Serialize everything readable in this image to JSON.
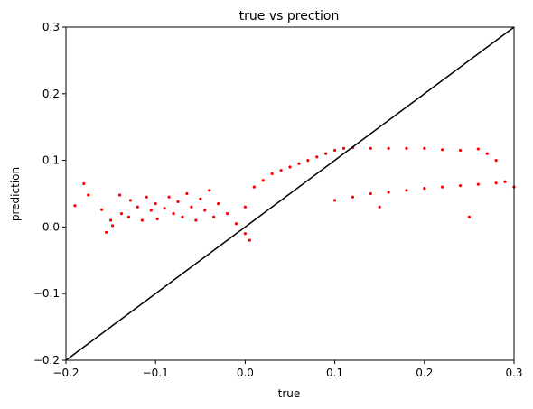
{
  "chart_data": {
    "type": "scatter",
    "title": "true vs prection",
    "xlabel": "true",
    "ylabel": "prediction",
    "xlim": [
      -0.2,
      0.3
    ],
    "ylim": [
      -0.2,
      0.3
    ],
    "grid": false,
    "xticks": [
      -0.2,
      -0.1,
      0.0,
      0.1,
      0.2,
      0.3
    ],
    "yticks": [
      -0.2,
      -0.1,
      0.0,
      0.1,
      0.2,
      0.3
    ],
    "xtick_labels": [
      "−0.2",
      "−0.1",
      "0.0",
      "0.1",
      "0.2",
      "0.3"
    ],
    "ytick_labels": [
      "−0.2",
      "−0.1",
      "0.0",
      "0.1",
      "0.2",
      "0.3"
    ],
    "point_color": "#ff0000",
    "reference_line": {
      "x": [
        -0.2,
        0.3
      ],
      "y": [
        -0.2,
        0.3
      ],
      "color": "#000000"
    },
    "series": [
      {
        "values": [
          [
            -0.19,
            0.032
          ],
          [
            -0.18,
            0.065
          ],
          [
            -0.175,
            0.048
          ],
          [
            -0.16,
            0.026
          ],
          [
            -0.155,
            -0.008
          ],
          [
            -0.15,
            0.01
          ],
          [
            -0.148,
            0.002
          ],
          [
            -0.14,
            0.048
          ],
          [
            -0.138,
            0.02
          ],
          [
            -0.13,
            0.015
          ],
          [
            -0.128,
            0.04
          ],
          [
            -0.12,
            0.03
          ],
          [
            -0.115,
            0.01
          ],
          [
            -0.11,
            0.045
          ],
          [
            -0.105,
            0.025
          ],
          [
            -0.1,
            0.035
          ],
          [
            -0.098,
            0.012
          ],
          [
            -0.09,
            0.028
          ],
          [
            -0.085,
            0.045
          ],
          [
            -0.08,
            0.02
          ],
          [
            -0.075,
            0.038
          ],
          [
            -0.07,
            0.015
          ],
          [
            -0.065,
            0.05
          ],
          [
            -0.06,
            0.03
          ],
          [
            -0.055,
            0.01
          ],
          [
            -0.05,
            0.042
          ],
          [
            -0.045,
            0.025
          ],
          [
            -0.04,
            0.055
          ],
          [
            -0.035,
            0.015
          ],
          [
            -0.03,
            0.035
          ],
          [
            -0.02,
            0.02
          ],
          [
            -0.01,
            0.005
          ],
          [
            0.0,
            -0.01
          ],
          [
            0.005,
            -0.02
          ],
          [
            0.0,
            0.03
          ],
          [
            0.01,
            0.06
          ],
          [
            0.02,
            0.07
          ],
          [
            0.03,
            0.08
          ],
          [
            0.04,
            0.085
          ],
          [
            0.05,
            0.09
          ],
          [
            0.06,
            0.095
          ],
          [
            0.07,
            0.1
          ],
          [
            0.08,
            0.105
          ],
          [
            0.09,
            0.11
          ],
          [
            0.1,
            0.115
          ],
          [
            0.11,
            0.118
          ],
          [
            0.12,
            0.119
          ],
          [
            0.14,
            0.118
          ],
          [
            0.16,
            0.118
          ],
          [
            0.18,
            0.118
          ],
          [
            0.2,
            0.118
          ],
          [
            0.22,
            0.116
          ],
          [
            0.24,
            0.115
          ],
          [
            0.26,
            0.117
          ],
          [
            0.27,
            0.11
          ],
          [
            0.28,
            0.1
          ],
          [
            0.1,
            0.04
          ],
          [
            0.12,
            0.045
          ],
          [
            0.14,
            0.05
          ],
          [
            0.16,
            0.052
          ],
          [
            0.18,
            0.055
          ],
          [
            0.2,
            0.058
          ],
          [
            0.22,
            0.06
          ],
          [
            0.24,
            0.062
          ],
          [
            0.26,
            0.064
          ],
          [
            0.28,
            0.066
          ],
          [
            0.29,
            0.068
          ],
          [
            0.3,
            0.06
          ],
          [
            0.25,
            0.015
          ],
          [
            0.15,
            0.03
          ]
        ]
      }
    ]
  }
}
